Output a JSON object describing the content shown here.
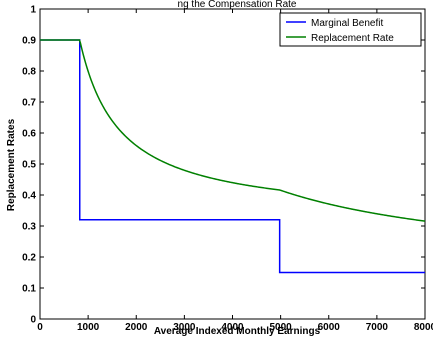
{
  "chart_data": {
    "type": "line",
    "title": "ng the Compensation Rate",
    "xlabel": "Average Indexed Monthly Earnings",
    "ylabel": "Replacement Rates",
    "xlim": [
      0,
      8000
    ],
    "ylim": [
      0,
      1
    ],
    "x_ticks": [
      0,
      1000,
      2000,
      3000,
      4000,
      5000,
      6000,
      7000,
      8000
    ],
    "x_tick_labels": [
      "0",
      "1000",
      "2000",
      "3000",
      "4000",
      "5000",
      "6000",
      "7000",
      "8000"
    ],
    "y_ticks": [
      0,
      0.1,
      0.2,
      0.3,
      0.4,
      0.5,
      0.6,
      0.7,
      0.8,
      0.9,
      1
    ],
    "y_tick_labels": [
      "0",
      "0.1",
      "0.2",
      "0.3",
      "0.4",
      "0.5",
      "0.6",
      "0.7",
      "0.8",
      "0.9",
      "1"
    ],
    "grid": false,
    "legend_position": "top-right",
    "series": [
      {
        "name": "Marginal Benefit",
        "color": "#0000ff",
        "x": [
          0,
          826,
          826,
          4980,
          4980,
          8000
        ],
        "y": [
          0.9,
          0.9,
          0.32,
          0.32,
          0.15,
          0.15
        ]
      },
      {
        "name": "Replacement Rate",
        "color": "#008000",
        "x": [
          0,
          826,
          1000,
          1500,
          2000,
          2500,
          3000,
          3500,
          4000,
          4500,
          4980,
          5500,
          6000,
          6500,
          7000,
          7500,
          8000
        ],
        "y": [
          0.9,
          0.9,
          0.799,
          0.635,
          0.554,
          0.505,
          0.473,
          0.449,
          0.432,
          0.418,
          0.407,
          0.383,
          0.364,
          0.349,
          0.335,
          0.324,
          0.314
        ]
      }
    ]
  }
}
